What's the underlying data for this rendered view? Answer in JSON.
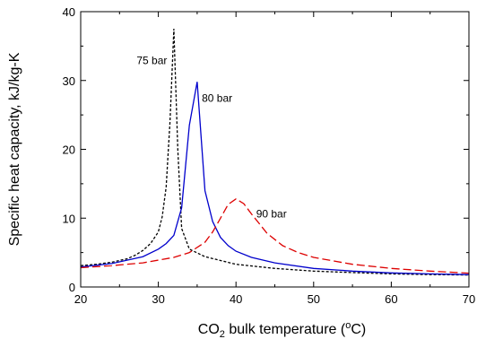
{
  "chart_data": {
    "type": "line",
    "title": "",
    "xlabel": "CO",
    "xlabel_sub": "2",
    "xlabel_rest": " bulk temperature (",
    "xlabel_sup": "o",
    "xlabel_end": "C)",
    "ylabel": "Specific heat capacity, kJ/kg-K",
    "xlim": [
      20,
      70
    ],
    "ylim": [
      0,
      40
    ],
    "xticks": [
      20,
      30,
      40,
      50,
      60,
      70
    ],
    "yticks": [
      0,
      10,
      20,
      30,
      40
    ],
    "grid": false,
    "series": [
      {
        "name": "75 bar",
        "color": "#000000",
        "dash": "short-dash",
        "x": [
          20,
          22,
          24,
          26,
          27,
          28,
          29,
          30,
          30.5,
          31,
          31.5,
          32,
          32.5,
          33,
          34,
          36,
          40,
          45,
          50,
          55,
          60,
          65,
          70
        ],
        "y": [
          3.1,
          3.3,
          3.6,
          4.1,
          4.6,
          5.3,
          6.3,
          8.0,
          10.2,
          14.5,
          24.0,
          37.5,
          20.0,
          8.5,
          5.5,
          4.4,
          3.3,
          2.7,
          2.3,
          2.1,
          1.9,
          1.8,
          1.75
        ]
      },
      {
        "name": "80 bar",
        "color": "#0000cc",
        "dash": "solid",
        "x": [
          20,
          24,
          28,
          30,
          31,
          32,
          33,
          34,
          35,
          36,
          37,
          38,
          39,
          40,
          42,
          45,
          50,
          55,
          60,
          65,
          70
        ],
        "y": [
          2.9,
          3.4,
          4.4,
          5.5,
          6.3,
          7.5,
          11.5,
          23.5,
          29.8,
          14.0,
          9.5,
          7.2,
          6.0,
          5.2,
          4.3,
          3.5,
          2.7,
          2.3,
          2.05,
          1.9,
          1.8
        ]
      },
      {
        "name": "90 bar",
        "color": "#dd0000",
        "dash": "long-dash",
        "x": [
          20,
          24,
          28,
          32,
          34,
          36,
          37,
          38,
          39,
          40,
          41,
          42,
          43,
          44,
          46,
          48,
          50,
          55,
          60,
          65,
          70
        ],
        "y": [
          2.8,
          3.1,
          3.5,
          4.3,
          5.0,
          6.5,
          8.0,
          10.0,
          12.0,
          12.8,
          12.1,
          10.6,
          9.2,
          7.8,
          6.0,
          5.0,
          4.3,
          3.3,
          2.7,
          2.3,
          2.0
        ]
      }
    ]
  }
}
